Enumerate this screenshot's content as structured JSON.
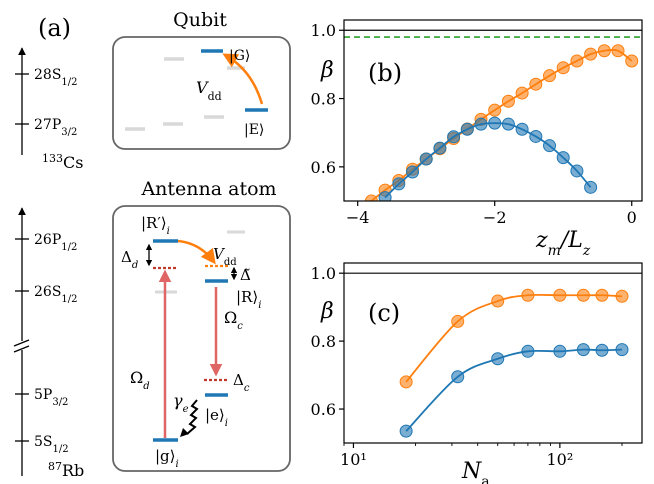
{
  "panel_a": {
    "label": "(a)",
    "qubit_title": "Qubit",
    "antenna_title": "Antenna atom",
    "cs": {
      "levels": [
        "28S",
        "27P"
      ],
      "level_subs": [
        "1/2",
        "3/2"
      ],
      "element_mass": "133",
      "element": "Cs"
    },
    "rb": {
      "levels": [
        "26P",
        "26S",
        "5P",
        "5S"
      ],
      "level_subs": [
        "1/2",
        "1/2",
        "3/2",
        "1/2"
      ],
      "element_mass": "87",
      "element": "Rb"
    },
    "qubit_box": {
      "G": "|G⟩",
      "E": "|E⟩",
      "V": "V",
      "V_sub": "dd"
    },
    "antenna_box": {
      "Rp": "|R′⟩",
      "Rp_sub": "i",
      "R": "|R⟩",
      "R_sub": "i",
      "e": "|e⟩",
      "e_sub": "i",
      "g": "|g⟩",
      "g_sub": "i",
      "Delta_d": "Δ",
      "Delta_d_sub": "d",
      "Delta_c": "Δ",
      "Delta_c_sub": "c",
      "Delta_tilde": "Δ̃",
      "V": "V",
      "V_sub": "dd",
      "Omega_d": "Ω",
      "Omega_d_sub": "d",
      "Omega_c": "Ω",
      "Omega_c_sub": "c",
      "gamma_e": "γ",
      "gamma_e_sub": "e"
    }
  },
  "colors": {
    "blue": "#1f77b4",
    "orange": "#ff7f0e",
    "red_arrow": "#e06666",
    "dotted_red": "#c0392b",
    "green_dashed": "#2ca02c",
    "gray_level": "#d9d9d9",
    "box_border": "#666666"
  },
  "chart_data": [
    {
      "type": "line",
      "panel_label": "(b)",
      "xlabel": "z",
      "xlabel_sub": "m",
      "xlabel_tail": "/L",
      "xlabel_tail_sub": "z",
      "ylabel": "β",
      "xlim": [
        -4.2,
        0.15
      ],
      "ylim": [
        0.5,
        1.03
      ],
      "xticks": [
        -4,
        -2,
        0
      ],
      "xtick_labels": [
        "−4",
        "−2",
        "0"
      ],
      "yticks": [
        0.6,
        0.8,
        1.0
      ],
      "ytick_labels": [
        "0.6",
        "0.8",
        "1.0"
      ],
      "reference_lines": [
        {
          "y": 1.0,
          "style": "solid",
          "color": "#000000"
        },
        {
          "y": 0.98,
          "style": "dashed",
          "color": "#2ca02c"
        }
      ],
      "series": [
        {
          "color": "#ff7f0e",
          "x": [
            -3.8,
            -3.6,
            -3.4,
            -3.2,
            -3.0,
            -2.8,
            -2.6,
            -2.4,
            -2.2,
            -2.0,
            -1.8,
            -1.6,
            -1.4,
            -1.2,
            -1.0,
            -0.8,
            -0.6,
            -0.4,
            -0.2,
            0.0
          ],
          "y": [
            0.5,
            0.532,
            0.56,
            0.593,
            0.623,
            0.653,
            0.683,
            0.711,
            0.739,
            0.766,
            0.792,
            0.816,
            0.842,
            0.867,
            0.89,
            0.91,
            0.93,
            0.94,
            0.94,
            0.91
          ]
        },
        {
          "color": "#1f77b4",
          "x": [
            -3.6,
            -3.4,
            -3.2,
            -3.0,
            -2.8,
            -2.6,
            -2.4,
            -2.2,
            -2.0,
            -1.8,
            -1.6,
            -1.4,
            -1.2,
            -1.0,
            -0.8,
            -0.6
          ],
          "y": [
            0.51,
            0.55,
            0.585,
            0.623,
            0.655,
            0.688,
            0.71,
            0.725,
            0.728,
            0.725,
            0.71,
            0.689,
            0.662,
            0.627,
            0.588,
            0.54
          ]
        }
      ]
    },
    {
      "type": "line",
      "panel_label": "(c)",
      "xlabel": "N",
      "xlabel_sub": "a",
      "ylabel": "β",
      "xscale": "log",
      "xlim": [
        9,
        250
      ],
      "ylim": [
        0.5,
        1.03
      ],
      "xticks": [
        10,
        100
      ],
      "xtick_labels": [
        "10¹",
        "10²"
      ],
      "yticks": [
        0.6,
        0.8,
        1.0
      ],
      "ytick_labels": [
        "0.6",
        "0.8",
        "1.0"
      ],
      "reference_lines": [
        {
          "y": 1.0,
          "style": "solid",
          "color": "#000000"
        }
      ],
      "series": [
        {
          "color": "#ff7f0e",
          "x": [
            18,
            32,
            50,
            70,
            100,
            130,
            160,
            200
          ],
          "y": [
            0.68,
            0.858,
            0.918,
            0.935,
            0.935,
            0.935,
            0.935,
            0.932
          ]
        },
        {
          "color": "#1f77b4",
          "x": [
            18,
            32,
            50,
            70,
            100,
            130,
            160,
            200
          ],
          "y": [
            0.535,
            0.695,
            0.748,
            0.77,
            0.77,
            0.775,
            0.773,
            0.775
          ]
        }
      ]
    }
  ]
}
